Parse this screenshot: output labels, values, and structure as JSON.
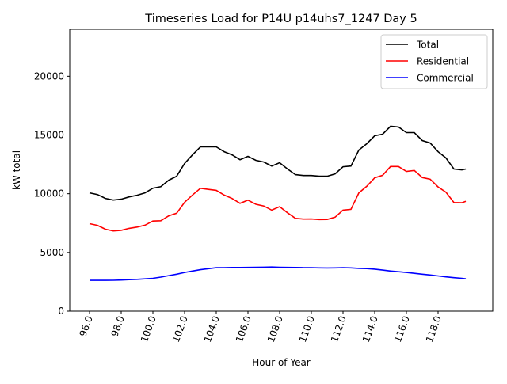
{
  "chart_data": {
    "type": "line",
    "title": "Timeseries Load for P14U p14uhs7_1247  Day 5",
    "xlabel": "Hour of Year",
    "ylabel": "kW total",
    "xlim": [
      94.75,
      121.45
    ],
    "ylim": [
      0,
      24000
    ],
    "grid": false,
    "legend_position": "top-right",
    "xticks": [
      96,
      98,
      100,
      102,
      104,
      106,
      108,
      110,
      112,
      114,
      116,
      118
    ],
    "xtick_labels": [
      "96.0",
      "98.0",
      "100.0",
      "102.0",
      "104.0",
      "106.0",
      "108.0",
      "110.0",
      "112.0",
      "114.0",
      "116.0",
      "118.0"
    ],
    "yticks": [
      0,
      5000,
      10000,
      15000,
      20000
    ],
    "ytick_labels": [
      "0",
      "5000",
      "10000",
      "15000",
      "20000"
    ],
    "x": [
      96,
      96.5,
      97,
      97.5,
      98,
      98.5,
      99,
      99.5,
      100,
      100.5,
      101,
      101.5,
      102,
      102.5,
      103,
      103.5,
      104,
      104.5,
      105,
      105.5,
      106,
      106.5,
      107,
      107.5,
      108,
      108.5,
      109,
      109.5,
      110,
      110.5,
      111,
      111.5,
      112,
      112.5,
      113,
      113.5,
      114,
      114.5,
      115,
      115.5,
      116,
      116.5,
      117,
      117.5,
      118,
      118.5,
      119,
      119.5,
      119.75
    ],
    "series": [
      {
        "name": "Total",
        "color": "#000000",
        "values": [
          10070,
          9930,
          9600,
          9460,
          9530,
          9730,
          9870,
          10070,
          10470,
          10600,
          11150,
          11490,
          12570,
          13310,
          13990,
          13990,
          13990,
          13580,
          13310,
          12900,
          13180,
          12840,
          12700,
          12360,
          12640,
          12100,
          11620,
          11550,
          11550,
          11490,
          11490,
          11690,
          12300,
          12360,
          13720,
          14260,
          14930,
          15070,
          15740,
          15680,
          15200,
          15200,
          14530,
          14320,
          13580,
          13040,
          12100,
          12030,
          12100
        ]
      },
      {
        "name": "Residential",
        "color": "#ff0000",
        "values": [
          7450,
          7310,
          6980,
          6830,
          6880,
          7050,
          7160,
          7320,
          7670,
          7700,
          8120,
          8340,
          9270,
          9890,
          10460,
          10370,
          10290,
          9880,
          9590,
          9180,
          9450,
          9100,
          8950,
          8600,
          8900,
          8370,
          7900,
          7840,
          7850,
          7800,
          7810,
          8000,
          8600,
          8670,
          10070,
          10630,
          11350,
          11570,
          12320,
          12320,
          11900,
          11980,
          11380,
          11240,
          10580,
          10120,
          9250,
          9230,
          9350
        ]
      },
      {
        "name": "Commercial",
        "color": "#0000ff",
        "values": [
          2620,
          2620,
          2620,
          2630,
          2650,
          2680,
          2710,
          2750,
          2800,
          2900,
          3030,
          3150,
          3300,
          3420,
          3530,
          3620,
          3700,
          3700,
          3720,
          3720,
          3730,
          3740,
          3750,
          3760,
          3740,
          3730,
          3720,
          3710,
          3700,
          3690,
          3680,
          3690,
          3700,
          3690,
          3650,
          3630,
          3580,
          3500,
          3420,
          3360,
          3300,
          3220,
          3150,
          3080,
          3000,
          2920,
          2850,
          2800,
          2750
        ]
      }
    ]
  }
}
